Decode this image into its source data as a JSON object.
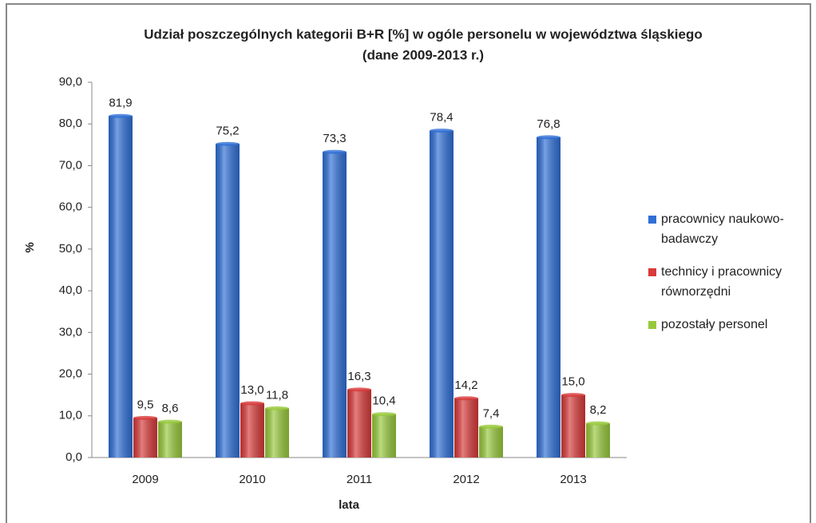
{
  "chart_data": {
    "type": "bar",
    "title": [
      "Udział poszczególnych kategorii B+R [%] w ogóle personelu w województwa śląskiego",
      "(dane 2009-2013 r.)"
    ],
    "xlabel": "lata",
    "ylabel": "%",
    "categories": [
      "2009",
      "2010",
      "2011",
      "2012",
      "2013"
    ],
    "series": [
      {
        "name": "pracownicy naukowo-badawczy",
        "color": "#2f6fd6",
        "values": [
          81.9,
          75.2,
          73.3,
          78.4,
          76.8
        ],
        "value_labels": [
          "81,9",
          "75,2",
          "73,3",
          "78,4",
          "76,8"
        ]
      },
      {
        "name": "technicy i pracownicy równorzędni",
        "color": "#d83a3a",
        "values": [
          9.5,
          13.0,
          16.3,
          14.2,
          15.0
        ],
        "value_labels": [
          "9,5",
          "13,0",
          "16,3",
          "14,2",
          "15,0"
        ]
      },
      {
        "name": "pozostały personel",
        "color": "#98c93c",
        "values": [
          8.6,
          11.8,
          10.4,
          7.4,
          8.2
        ],
        "value_labels": [
          "8,6",
          "11,8",
          "10,4",
          "7,4",
          "8,2"
        ]
      }
    ],
    "ylim": [
      0,
      90
    ],
    "yticks": [
      {
        "value": 0,
        "label": "0,0"
      },
      {
        "value": 10,
        "label": "10,0"
      },
      {
        "value": 20,
        "label": "20,0"
      },
      {
        "value": 30,
        "label": "30,0"
      },
      {
        "value": 40,
        "label": "40,0"
      },
      {
        "value": 50,
        "label": "50,0"
      },
      {
        "value": 60,
        "label": "60,0"
      },
      {
        "value": 70,
        "label": "70,0"
      },
      {
        "value": 80,
        "label": "80,0"
      },
      {
        "value": 90,
        "label": "90,0"
      }
    ],
    "legend": "right"
  }
}
